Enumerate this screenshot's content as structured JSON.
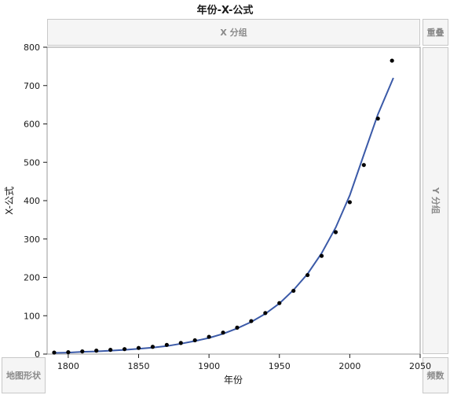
{
  "title": "年份-X-公式",
  "dropzones": {
    "x_group": "X 分组",
    "overlay": "重叠",
    "y_group": "Y 分组",
    "map_shape": "地图形状",
    "frequency": "频数"
  },
  "colors": {
    "fit_line": "#3b5aa8",
    "points": "#000000"
  },
  "chart_data": {
    "type": "scatter",
    "xlabel": "年份",
    "ylabel": "X-公式",
    "xlim": [
      1785,
      2050
    ],
    "ylim": [
      0,
      800
    ],
    "x_ticks": [
      "1800",
      "1850",
      "1900",
      "1950",
      "2000",
      "2050"
    ],
    "y_ticks": [
      "0",
      "100",
      "200",
      "300",
      "400",
      "500",
      "600",
      "700",
      "800"
    ],
    "points": {
      "x": [
        1790,
        1800,
        1810,
        1820,
        1830,
        1840,
        1850,
        1860,
        1870,
        1880,
        1890,
        1900,
        1910,
        1920,
        1930,
        1940,
        1950,
        1960,
        1970,
        1980,
        1990,
        2000,
        2010,
        2020,
        2030
      ],
      "y": [
        4,
        5,
        7,
        9,
        11,
        13,
        16,
        19,
        24,
        29,
        36,
        45,
        56,
        69,
        86,
        107,
        133,
        165,
        206,
        256,
        318,
        396,
        493,
        614,
        765
      ]
    },
    "fit_curve": {
      "x": [
        1790,
        1800,
        1810,
        1820,
        1830,
        1840,
        1850,
        1860,
        1870,
        1880,
        1890,
        1900,
        1910,
        1920,
        1930,
        1940,
        1950,
        1960,
        1970,
        1980,
        1990,
        2000,
        2010,
        2020,
        2031
      ],
      "y": [
        3,
        4,
        6,
        7,
        9,
        11,
        14,
        17,
        21,
        27,
        34,
        42,
        53,
        67,
        84,
        105,
        132,
        167,
        209,
        263,
        330,
        414,
        520,
        625,
        720
      ]
    }
  }
}
